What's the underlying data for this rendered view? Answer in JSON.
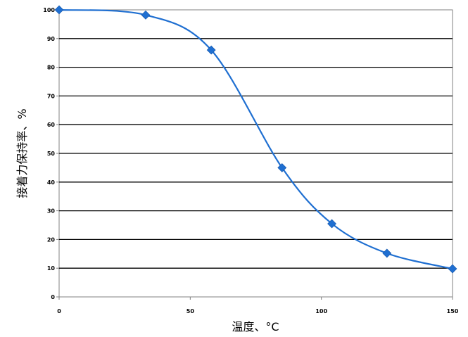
{
  "chart_data": {
    "type": "line",
    "xlabel": "温度、°C",
    "ylabel": "接着力保持率、%",
    "xlim": [
      0,
      150
    ],
    "ylim": [
      0,
      100
    ],
    "x_ticks": [
      "0",
      "50",
      "100",
      "150"
    ],
    "y_ticks": [
      "0",
      "10",
      "20",
      "30",
      "40",
      "50",
      "60",
      "70",
      "80",
      "90",
      "100"
    ],
    "grid": "horizontal",
    "legend": "none",
    "series": [
      {
        "x": [
          0,
          33,
          58,
          85,
          104,
          125,
          150
        ],
        "y": [
          100,
          98.2,
          86,
          45,
          25.5,
          15.2,
          9.8
        ],
        "color": "#1f6fd1",
        "marker": "diamond"
      }
    ]
  }
}
